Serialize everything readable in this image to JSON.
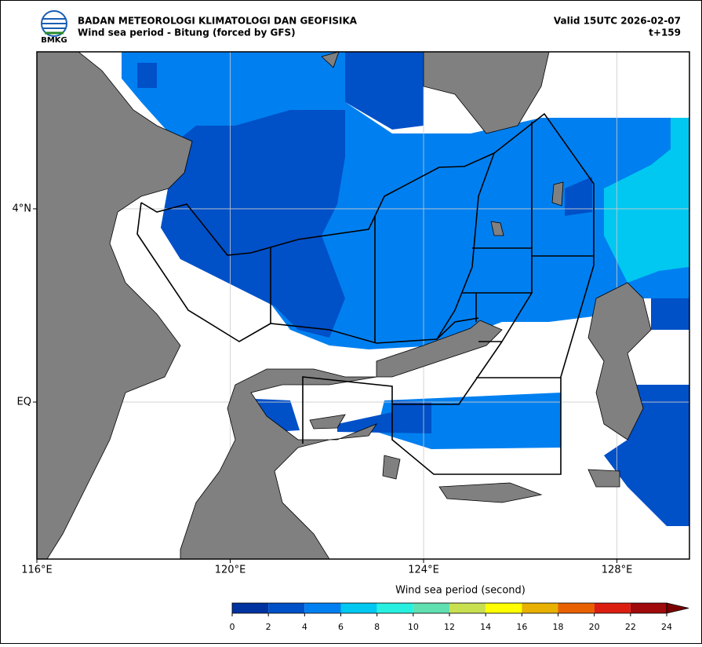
{
  "header": {
    "org": "BADAN METEOROLOGI KLIMATOLOGI DAN GEOFISIKA",
    "subtitle": "Wind sea period - Bitung (forced by GFS)",
    "valid": "Valid 15UTC 2026-02-07",
    "step": "t+159",
    "logo": "BMKG"
  },
  "map": {
    "xlim": [
      116,
      129.5
    ],
    "ylim": [
      -3.25,
      7.25
    ],
    "grid": true,
    "xticks": [
      {
        "value": 116,
        "label": "116°E"
      },
      {
        "value": 120,
        "label": "120°E"
      },
      {
        "value": 124,
        "label": "124°E"
      },
      {
        "value": 128,
        "label": "128°E"
      }
    ],
    "yticks": [
      {
        "value": 4,
        "label": "4°N"
      },
      {
        "value": 0,
        "label": "EQ"
      }
    ]
  },
  "colorbar": {
    "label": "Wind sea period (second)",
    "ticks": [
      0,
      2,
      4,
      6,
      8,
      10,
      12,
      14,
      16,
      18,
      20,
      22,
      24
    ],
    "colors": [
      "#0033a0",
      "#0050c8",
      "#0080f0",
      "#00c8f0",
      "#28f0e0",
      "#60e0b0",
      "#c8e050",
      "#ffff00",
      "#e8b000",
      "#e86000",
      "#dc1e10",
      "#a00a0a"
    ],
    "extend_color": "#7a0000"
  }
}
